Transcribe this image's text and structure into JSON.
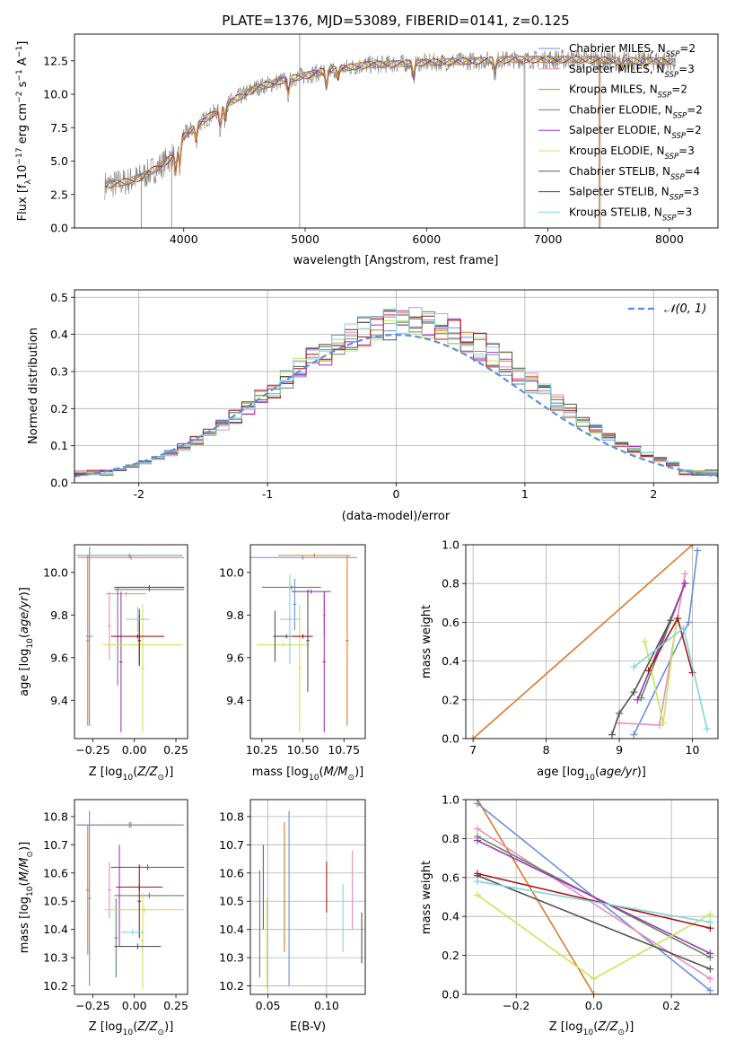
{
  "figure": {
    "title": "PLATE=1376, MJD=53089, FIBERID=0141, z=0.125"
  },
  "colors": {
    "Chabrier MILES": "#6a8fd8",
    "Salpeter MILES": "#e88ec2",
    "Kroupa MILES": "#db7b2b",
    "Chabrier ELODIE": "#5c8a5c",
    "Salpeter ELODIE": "#a235b8",
    "Kroupa ELODIE": "#c8e65a",
    "Chabrier STELIB": "#555555",
    "Salpeter STELIB": "#a8141e",
    "Kroupa STELIB": "#7fd6dc",
    "data": "#808080",
    "normal": "#5b8fd6",
    "grid": "#b0b0b0"
  },
  "chart_data": [
    {
      "id": "spectrum",
      "type": "line",
      "title": "PLATE=1376, MJD=53089, FIBERID=0141, z=0.125",
      "xlabel": "wavelength [Angstrom, rest frame]",
      "ylabel": "Flux [fλ10⁻¹⁷ erg cm⁻² s⁻¹ A⁻¹]",
      "xlim": [
        3100,
        8400
      ],
      "ylim": [
        0,
        14.5
      ],
      "xticks": [
        4000,
        5000,
        6000,
        7000,
        8000
      ],
      "yticks": [
        0.0,
        2.5,
        5.0,
        7.5,
        10.0,
        12.5
      ],
      "grid": false,
      "legend_position": "top-right",
      "continuum": {
        "x": [
          3350,
          3500,
          3650,
          3800,
          3900,
          4000,
          4100,
          4250,
          4400,
          4600,
          4800,
          5000,
          5200,
          5500,
          5800,
          6100,
          6400,
          6700,
          7000,
          7300,
          7600,
          7900,
          8050
        ],
        "y": [
          3.2,
          3.4,
          3.8,
          4.6,
          5.3,
          6.9,
          7.6,
          8.6,
          9.5,
          10.5,
          11.0,
          11.4,
          11.8,
          12.2,
          12.3,
          12.4,
          12.5,
          12.6,
          12.6,
          12.6,
          12.5,
          12.5,
          12.4
        ]
      },
      "series": [
        {
          "name": "Chabrier MILES",
          "nssp": "2"
        },
        {
          "name": "Salpeter MILES",
          "nssp": "3"
        },
        {
          "name": "Kroupa MILES",
          "nssp": "2"
        },
        {
          "name": "Chabrier ELODIE",
          "nssp": "2"
        },
        {
          "name": "Salpeter ELODIE",
          "nssp": "2"
        },
        {
          "name": "Kroupa ELODIE",
          "nssp": "3"
        },
        {
          "name": "Chabrier STELIB",
          "nssp": "4"
        },
        {
          "name": "Salpeter STELIB",
          "nssp": "3"
        },
        {
          "name": "Kroupa STELIB",
          "nssp": "3"
        }
      ]
    },
    {
      "id": "residuals",
      "type": "line",
      "xlabel": "(data-model)/error",
      "ylabel": "Normed distribution",
      "xlim": [
        -2.5,
        2.5
      ],
      "ylim": [
        0,
        0.52
      ],
      "xticks": [
        -2,
        -1,
        0,
        1,
        2
      ],
      "yticks": [
        0.0,
        0.1,
        0.2,
        0.3,
        0.4,
        0.5
      ],
      "grid": true,
      "legend_position": "top-right",
      "normal_label": "𝒩(0, 1)"
    },
    {
      "id": "age-metallicity",
      "type": "scatter",
      "xlabel": "Z [log₁₀(Z/Z⊙)]",
      "ylabel": "age  [log₁₀(age/yr)]",
      "xlim": [
        -0.36,
        0.32
      ],
      "ylim": [
        9.22,
        10.13
      ],
      "xticks": [
        -0.25,
        0.0,
        0.25
      ],
      "xticklabels": [
        "−0.25",
        "0.00",
        "0.25"
      ],
      "yticks": [
        9.4,
        9.6,
        9.8,
        10.0
      ],
      "grid": false,
      "points": [
        {
          "series": "Chabrier MILES",
          "x": -0.27,
          "xerr": 0.02,
          "y": 9.7,
          "yerr": 0.42
        },
        {
          "series": "Kroupa MILES",
          "x": -0.02,
          "xerr": 0.32,
          "y": 10.07,
          "yerr": 0.01
        },
        {
          "series": "Kroupa MILES",
          "x": -0.28,
          "xerr": 0.01,
          "y": 9.68,
          "yerr": 0.4
        },
        {
          "series": "Salpeter MILES",
          "x": -0.05,
          "xerr": 0.12,
          "y": 9.9,
          "yerr": 0.01
        },
        {
          "series": "Salpeter MILES",
          "x": -0.15,
          "xerr": 0.01,
          "y": 9.75,
          "yerr": 0.16
        },
        {
          "series": "Chabrier ELODIE",
          "x": 0.09,
          "xerr": 0.21,
          "y": 9.92,
          "yerr": 0.01
        },
        {
          "series": "Chabrier ELODIE",
          "x": -0.1,
          "xerr": 0.01,
          "y": 9.7,
          "yerr": 0.23
        },
        {
          "series": "Salpeter ELODIE",
          "x": -0.08,
          "xerr": 0.01,
          "y": 9.58,
          "yerr": 0.33
        },
        {
          "series": "Kroupa ELODIE",
          "x": 0.05,
          "xerr": 0.24,
          "y": 9.66,
          "yerr": 0.01
        },
        {
          "series": "Kroupa ELODIE",
          "x": 0.05,
          "xerr": 0.01,
          "y": 9.55,
          "yerr": 0.3
        },
        {
          "series": "Chabrier STELIB",
          "x": 0.09,
          "xerr": 0.21,
          "y": 9.93,
          "yerr": 0.01
        },
        {
          "series": "Chabrier STELIB",
          "x": 0.03,
          "xerr": 0.01,
          "y": 9.7,
          "yerr": 0.13
        },
        {
          "series": "Salpeter STELIB",
          "x": 0.02,
          "xerr": 0.16,
          "y": 9.7,
          "yerr": 0.01
        },
        {
          "series": "Salpeter STELIB",
          "x": 0.03,
          "xerr": 0.01,
          "y": 9.68,
          "yerr": 0.12
        },
        {
          "series": "Kroupa STELIB",
          "x": 0.02,
          "xerr": 0.07,
          "y": 9.78,
          "yerr": 0.06
        },
        {
          "series": "Chabrier MILES",
          "x": -0.03,
          "xerr": 0.32,
          "y": 10.08,
          "yerr": 0.01
        }
      ]
    },
    {
      "id": "age-mass",
      "type": "scatter",
      "xlabel": "mass [log₁₀(M/M⊙)]",
      "xlim": [
        10.18,
        10.88
      ],
      "ylim": [
        9.22,
        10.13
      ],
      "xticks": [
        10.25,
        10.5,
        10.75
      ],
      "xticklabels": [
        "10.25",
        "10.50",
        "10.75"
      ],
      "yticks": [
        9.4,
        9.6,
        9.8,
        10.0
      ],
      "grid": false,
      "points": [
        {
          "series": "Chabrier MILES",
          "x": 10.5,
          "xerr": 0.33,
          "y": 10.07,
          "yerr": 0.01
        },
        {
          "series": "Chabrier MILES",
          "x": 10.45,
          "xerr": 0.01,
          "y": 9.85,
          "yerr": 0.12
        },
        {
          "series": "Kroupa MILES",
          "x": 10.77,
          "xerr": 0.01,
          "y": 9.68,
          "yerr": 0.4
        },
        {
          "series": "Kroupa MILES",
          "x": 10.57,
          "xerr": 0.22,
          "y": 10.08,
          "yerr": 0.01
        },
        {
          "series": "Salpeter MILES",
          "x": 10.63,
          "xerr": 0.01,
          "y": 9.8,
          "yerr": 0.1
        },
        {
          "series": "Chabrier ELODIE",
          "x": 10.43,
          "xerr": 0.18,
          "y": 9.93,
          "yerr": 0.01
        },
        {
          "series": "Salpeter ELODIE",
          "x": 10.63,
          "xerr": 0.01,
          "y": 9.58,
          "yerr": 0.33
        },
        {
          "series": "Salpeter ELODIE",
          "x": 10.55,
          "xerr": 0.12,
          "y": 9.91,
          "yerr": 0.01
        },
        {
          "series": "Kroupa ELODIE",
          "x": 10.48,
          "xerr": 0.01,
          "y": 9.55,
          "yerr": 0.3
        },
        {
          "series": "Kroupa ELODIE",
          "x": 10.38,
          "xerr": 0.16,
          "y": 9.66,
          "yerr": 0.01
        },
        {
          "series": "Chabrier STELIB",
          "x": 10.33,
          "xerr": 0.01,
          "y": 9.7,
          "yerr": 0.12
        },
        {
          "series": "Chabrier STELIB",
          "x": 10.4,
          "xerr": 0.08,
          "y": 9.7,
          "yerr": 0.01
        },
        {
          "series": "Chabrier STELIB",
          "x": 10.53,
          "xerr": 0.01,
          "y": 9.68,
          "yerr": 0.24
        },
        {
          "series": "Salpeter STELIB",
          "x": 10.5,
          "xerr": 0.06,
          "y": 9.7,
          "yerr": 0.01
        },
        {
          "series": "Kroupa STELIB",
          "x": 10.42,
          "xerr": 0.06,
          "y": 9.78,
          "yerr": 0.01
        },
        {
          "series": "Kroupa STELIB",
          "x": 10.42,
          "xerr": 0.01,
          "y": 9.78,
          "yerr": 0.21
        }
      ]
    },
    {
      "id": "weight-age",
      "type": "line",
      "xlabel": "age  [log₁₀(age/yr)]",
      "ylabel": "mass weight",
      "xlim": [
        6.9,
        10.35
      ],
      "ylim": [
        0,
        1
      ],
      "xticks": [
        7,
        8,
        9,
        10
      ],
      "yticks": [
        0.0,
        0.2,
        0.4,
        0.6,
        0.8,
        1.0
      ],
      "grid": true,
      "series": [
        {
          "name": "Kroupa MILES",
          "x": [
            7.0,
            10.0
          ],
          "y": [
            0.0,
            1.0
          ]
        },
        {
          "name": "Chabrier MILES",
          "x": [
            9.2,
            9.95,
            10.07
          ],
          "y": [
            0.02,
            0.6,
            0.97
          ]
        },
        {
          "name": "Salpeter MILES",
          "x": [
            9.0,
            9.55,
            9.9
          ],
          "y": [
            0.08,
            0.07,
            0.85
          ]
        },
        {
          "name": "Chabrier ELODIE",
          "x": [
            9.3,
            9.9
          ],
          "y": [
            0.21,
            0.8
          ]
        },
        {
          "name": "Salpeter ELODIE",
          "x": [
            9.25,
            9.9
          ],
          "y": [
            0.2,
            0.8
          ]
        },
        {
          "name": "Kroupa ELODIE",
          "x": [
            9.35,
            9.6,
            9.78
          ],
          "y": [
            0.5,
            0.08,
            0.6
          ]
        },
        {
          "name": "Chabrier STELIB",
          "x": [
            8.9,
            9.0,
            9.2,
            9.7
          ],
          "y": [
            0.02,
            0.13,
            0.24,
            0.61
          ]
        },
        {
          "name": "Salpeter STELIB",
          "x": [
            9.4,
            9.8,
            10.0
          ],
          "y": [
            0.35,
            0.62,
            0.34
          ]
        },
        {
          "name": "Kroupa STELIB",
          "x": [
            9.2,
            9.88,
            10.2
          ],
          "y": [
            0.37,
            0.57,
            0.05
          ]
        }
      ]
    },
    {
      "id": "mass-metallicity",
      "type": "scatter",
      "xlabel": "Z [log₁₀(Z/Z⊙)]",
      "ylabel": "mass [log₁₀(M/M⊙)]",
      "xlim": [
        -0.36,
        0.32
      ],
      "ylim": [
        10.17,
        10.86
      ],
      "xticks": [
        -0.25,
        0.0,
        0.25
      ],
      "xticklabels": [
        "−0.25",
        "0.00",
        "0.25"
      ],
      "yticks": [
        10.2,
        10.3,
        10.4,
        10.5,
        10.6,
        10.7,
        10.8
      ],
      "grid": false,
      "points": [
        {
          "series": "Chabrier MILES",
          "x": -0.27,
          "xerr": 0.01,
          "y": 10.51,
          "yerr": 0.31
        },
        {
          "series": "Kroupa MILES",
          "x": -0.28,
          "xerr": 0.01,
          "y": 10.54,
          "yerr": 0.23
        },
        {
          "series": "Kroupa MILES",
          "x": -0.02,
          "xerr": 0.32,
          "y": 10.77,
          "yerr": 0.01
        },
        {
          "series": "Salpeter MILES",
          "x": -0.15,
          "xerr": 0.01,
          "y": 10.54,
          "yerr": 0.1
        },
        {
          "series": "Salpeter ELODIE",
          "x": 0.08,
          "xerr": 0.22,
          "y": 10.62,
          "yerr": 0.01
        },
        {
          "series": "Salpeter ELODIE",
          "x": -0.09,
          "xerr": 0.01,
          "y": 10.52,
          "yerr": 0.18
        },
        {
          "series": "Chabrier ELODIE",
          "x": 0.09,
          "xerr": 0.21,
          "y": 10.52,
          "yerr": 0.01
        },
        {
          "series": "Chabrier ELODIE",
          "x": -0.11,
          "xerr": 0.01,
          "y": 10.37,
          "yerr": 0.14
        },
        {
          "series": "Kroupa ELODIE",
          "x": 0.06,
          "xerr": 0.24,
          "y": 10.47,
          "yerr": 0.01
        },
        {
          "series": "Kroupa ELODIE",
          "x": 0.05,
          "xerr": 0.01,
          "y": 10.36,
          "yerr": 0.17
        },
        {
          "series": "Chabrier STELIB",
          "x": 0.02,
          "xerr": 0.14,
          "y": 10.34,
          "yerr": 0.01
        },
        {
          "series": "Salpeter STELIB",
          "x": 0.03,
          "xerr": 0.14,
          "y": 10.55,
          "yerr": 0.01
        },
        {
          "series": "Salpeter STELIB",
          "x": 0.03,
          "xerr": 0.01,
          "y": 10.5,
          "yerr": 0.13
        },
        {
          "series": "Kroupa STELIB",
          "x": -0.01,
          "xerr": 0.07,
          "y": 10.39,
          "yerr": 0.01
        },
        {
          "series": "Chabrier MILES",
          "x": -0.03,
          "xerr": 0.32,
          "y": 10.77,
          "yerr": 0.01
        }
      ]
    },
    {
      "id": "mass-ebv",
      "type": "scatter",
      "xlabel": "E(B-V)",
      "xlim": [
        0.035,
        0.133
      ],
      "ylim": [
        10.17,
        10.86
      ],
      "xticks": [
        0.05,
        0.1
      ],
      "xticklabels": [
        "0.05",
        "0.10"
      ],
      "yticks": [
        10.2,
        10.3,
        10.4,
        10.5,
        10.6,
        10.7,
        10.8
      ],
      "grid": true,
      "points": [
        {
          "series": "Chabrier ELODIE",
          "x": 0.043,
          "xerr": 0.0,
          "y": 10.42,
          "yerr": 0.19
        },
        {
          "series": "Salpeter ELODIE",
          "x": 0.046,
          "xerr": 0.0,
          "y": 10.55,
          "yerr": 0.15
        },
        {
          "series": "Kroupa ELODIE",
          "x": 0.049,
          "xerr": 0.0,
          "y": 10.35,
          "yerr": 0.16
        },
        {
          "series": "Kroupa MILES",
          "x": 0.064,
          "xerr": 0.0,
          "y": 10.55,
          "yerr": 0.23
        },
        {
          "series": "Chabrier MILES",
          "x": 0.068,
          "xerr": 0.0,
          "y": 10.51,
          "yerr": 0.31
        },
        {
          "series": "Salpeter STELIB",
          "x": 0.1,
          "xerr": 0.0,
          "y": 10.55,
          "yerr": 0.09
        },
        {
          "series": "Kroupa STELIB",
          "x": 0.114,
          "xerr": 0.0,
          "y": 10.44,
          "yerr": 0.12
        },
        {
          "series": "Salpeter MILES",
          "x": 0.122,
          "xerr": 0.0,
          "y": 10.54,
          "yerr": 0.14
        },
        {
          "series": "Chabrier STELIB",
          "x": 0.13,
          "xerr": 0.0,
          "y": 10.37,
          "yerr": 0.09
        }
      ]
    },
    {
      "id": "weight-metallicity",
      "type": "line",
      "xlabel": "Z [log₁₀(Z/Z⊙)]",
      "ylabel": "mass weight",
      "xlim": [
        -0.33,
        0.32
      ],
      "ylim": [
        0,
        1
      ],
      "xticks": [
        -0.2,
        0.0,
        0.2
      ],
      "xticklabels": [
        "−0.2",
        "0.0",
        "0.2"
      ],
      "yticks": [
        0.0,
        0.2,
        0.4,
        0.6,
        0.8,
        1.0
      ],
      "grid": true,
      "series": [
        {
          "name": "Kroupa MILES",
          "x": [
            -0.3,
            0.0
          ],
          "y": [
            1.0,
            0.0
          ]
        },
        {
          "name": "Chabrier MILES",
          "x": [
            -0.3,
            0.3
          ],
          "y": [
            0.98,
            0.02
          ]
        },
        {
          "name": "Salpeter MILES",
          "x": [
            -0.3,
            0.3
          ],
          "y": [
            0.85,
            0.08
          ]
        },
        {
          "name": "Chabrier ELODIE",
          "x": [
            -0.3,
            0.3
          ],
          "y": [
            0.81,
            0.19
          ]
        },
        {
          "name": "Salpeter ELODIE",
          "x": [
            -0.3,
            0.3
          ],
          "y": [
            0.79,
            0.21
          ]
        },
        {
          "name": "Kroupa ELODIE",
          "x": [
            -0.3,
            0.0,
            0.3
          ],
          "y": [
            0.51,
            0.08,
            0.41
          ]
        },
        {
          "name": "Chabrier STELIB",
          "x": [
            -0.3,
            0.3
          ],
          "y": [
            0.61,
            0.13
          ]
        },
        {
          "name": "Salpeter STELIB",
          "x": [
            -0.3,
            0.3
          ],
          "y": [
            0.62,
            0.34
          ]
        },
        {
          "name": "Kroupa STELIB",
          "x": [
            -0.3,
            0.3
          ],
          "y": [
            0.58,
            0.37
          ]
        }
      ]
    }
  ]
}
